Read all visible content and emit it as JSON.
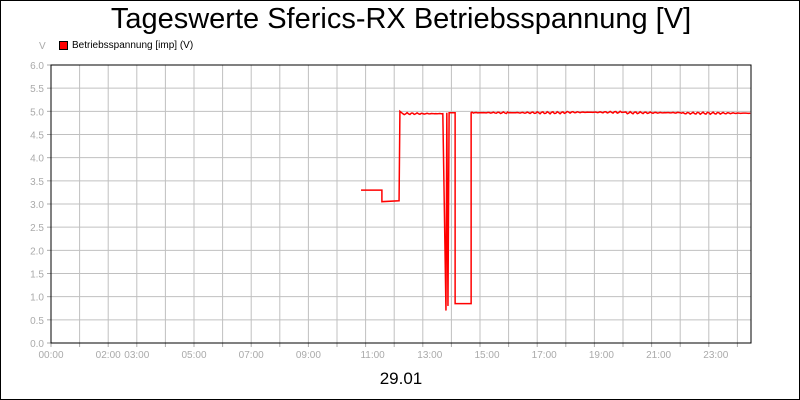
{
  "chart_data": {
    "type": "line",
    "title": "Tageswerte Sferics-RX Betriebsspannung [V]",
    "ylabel": "V",
    "xlabel": "29.01",
    "ylim": [
      0,
      6
    ],
    "xlim_hours": [
      0,
      24.45
    ],
    "grid": true,
    "legend": "top-left",
    "yticks": [
      "0.0",
      "0.5",
      "1.0",
      "1.5",
      "2.0",
      "2.5",
      "3.0",
      "3.5",
      "4.0",
      "4.5",
      "5.0",
      "5.5",
      "6.0"
    ],
    "xticks": [
      {
        "h": 0,
        "label": "00:00"
      },
      {
        "h": 2,
        "label": "02:00"
      },
      {
        "h": 3,
        "label": "03:00"
      },
      {
        "h": 5,
        "label": "05:00"
      },
      {
        "h": 7,
        "label": "07:00"
      },
      {
        "h": 9,
        "label": "09:00"
      },
      {
        "h": 11,
        "label": "11:00"
      },
      {
        "h": 13,
        "label": "13:00"
      },
      {
        "h": 15,
        "label": "15:00"
      },
      {
        "h": 17,
        "label": "17:00"
      },
      {
        "h": 19,
        "label": "19:00"
      },
      {
        "h": 21,
        "label": "21:00"
      },
      {
        "h": 23,
        "label": "23:00"
      }
    ],
    "series": [
      {
        "name": "Betriebsspannung [imp] (V)",
        "color": "#ff0000",
        "x": [
          10.84,
          11.57,
          11.57,
          12.17,
          12.2,
          12.3,
          13.0,
          13.7,
          13.81,
          13.84,
          13.88,
          13.92,
          13.96,
          14.02,
          14.13,
          14.13,
          14.69,
          14.69,
          14.72,
          16,
          18,
          20,
          22,
          24.45
        ],
        "y": [
          3.3,
          3.3,
          3.05,
          3.07,
          5.0,
          4.95,
          4.95,
          4.95,
          0.7,
          4.97,
          0.8,
          4.97,
          4.97,
          4.97,
          4.97,
          0.85,
          0.85,
          4.97,
          4.98,
          4.97,
          4.97,
          4.98,
          4.97,
          4.96
        ]
      }
    ]
  }
}
